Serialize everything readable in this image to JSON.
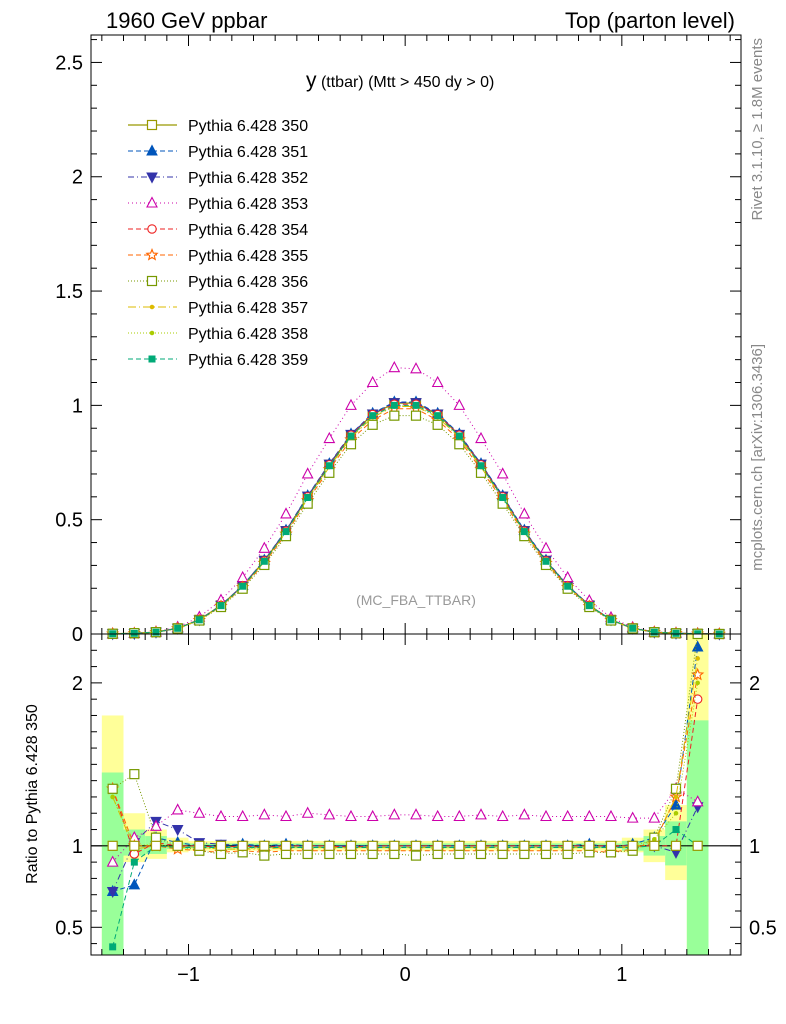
{
  "header": {
    "left_label": "1960 GeV ppbar",
    "right_label": "Top (parton level)"
  },
  "side_labels": {
    "rivet": "Rivet 3.1.10, ≥ 1.8M events",
    "mcplots": "mcplots.cern.ch [arXiv:1306.3436]"
  },
  "chart_data": [
    {
      "type": "line",
      "title": "y (ttbar) (Mtt > 450 dy > 0)",
      "title_main": "y",
      "title_rest": " (ttbar) (Mtt > 450 dy > 0)",
      "watermark": "(MC_FBA_TTBAR)",
      "xlim": [
        -1.45,
        1.55
      ],
      "ylim": [
        0,
        2.62
      ],
      "yticks": [
        0,
        0.5,
        1,
        1.5,
        2,
        2.5
      ],
      "ytick_labels": [
        "0",
        "0.5",
        "1",
        "1.5",
        "2",
        "2.5"
      ],
      "grid": false,
      "legend_position": "top-left",
      "x": [
        -1.35,
        -1.25,
        -1.15,
        -1.05,
        -0.95,
        -0.85,
        -0.75,
        -0.65,
        -0.55,
        -0.45,
        -0.35,
        -0.25,
        -0.15,
        -0.05,
        0.05,
        0.15,
        0.25,
        0.35,
        0.45,
        0.55,
        0.65,
        0.75,
        0.85,
        0.95,
        1.05,
        1.15,
        1.25,
        1.35,
        1.45
      ],
      "series": [
        {
          "name": "Pythia 6.428 350",
          "color": "#999900",
          "dash": "",
          "marker": "square-open",
          "width": 1.3,
          "values": [
            0.001,
            0.003,
            0.008,
            0.025,
            0.062,
            0.125,
            0.21,
            0.32,
            0.45,
            0.6,
            0.74,
            0.87,
            0.96,
            1.01,
            1.01,
            0.96,
            0.87,
            0.74,
            0.6,
            0.45,
            0.32,
            0.21,
            0.125,
            0.062,
            0.025,
            0.008,
            0.003,
            0.001,
            0.0
          ]
        },
        {
          "name": "Pythia 6.428 351",
          "color": "#0055bb",
          "dash": "5,3",
          "marker": "triangle-up",
          "width": 1.0,
          "values": [
            0.001,
            0.002,
            0.008,
            0.025,
            0.062,
            0.126,
            0.212,
            0.323,
            0.454,
            0.605,
            0.745,
            0.875,
            0.965,
            1.015,
            1.015,
            0.965,
            0.875,
            0.745,
            0.605,
            0.454,
            0.323,
            0.212,
            0.126,
            0.062,
            0.025,
            0.008,
            0.004,
            0.002,
            0.001
          ]
        },
        {
          "name": "Pythia 6.428 352",
          "color": "#3333aa",
          "dash": "6,3,1,3",
          "marker": "triangle-down",
          "width": 1.0,
          "values": [
            0.001,
            0.002,
            0.008,
            0.025,
            0.062,
            0.126,
            0.212,
            0.322,
            0.452,
            0.603,
            0.743,
            0.873,
            0.962,
            1.012,
            1.012,
            0.962,
            0.873,
            0.743,
            0.603,
            0.452,
            0.322,
            0.212,
            0.126,
            0.062,
            0.025,
            0.008,
            0.003,
            0.001,
            0.0
          ]
        },
        {
          "name": "Pythia 6.428 353",
          "color": "#cc00aa",
          "dash": "1,3",
          "marker": "triangle-open",
          "width": 1.0,
          "values": [
            0.001,
            0.003,
            0.009,
            0.03,
            0.074,
            0.148,
            0.247,
            0.375,
            0.525,
            0.7,
            0.855,
            1.0,
            1.1,
            1.165,
            1.16,
            1.1,
            1.0,
            0.855,
            0.7,
            0.525,
            0.375,
            0.247,
            0.146,
            0.072,
            0.029,
            0.009,
            0.004,
            0.001,
            0.0
          ]
        },
        {
          "name": "Pythia 6.428 354",
          "color": "#ee2222",
          "dash": "5,3",
          "marker": "circle-open",
          "width": 1.0,
          "values": [
            0.001,
            0.003,
            0.008,
            0.026,
            0.063,
            0.125,
            0.21,
            0.32,
            0.45,
            0.6,
            0.74,
            0.87,
            0.96,
            1.005,
            1.005,
            0.96,
            0.87,
            0.74,
            0.6,
            0.45,
            0.32,
            0.21,
            0.125,
            0.062,
            0.025,
            0.008,
            0.003,
            0.001,
            0.0
          ]
        },
        {
          "name": "Pythia 6.428 355",
          "color": "#ff6600",
          "dash": "5,3",
          "marker": "star-open",
          "width": 1.0,
          "values": [
            0.001,
            0.003,
            0.008,
            0.024,
            0.06,
            0.121,
            0.204,
            0.31,
            0.438,
            0.585,
            0.72,
            0.85,
            0.935,
            0.985,
            0.985,
            0.935,
            0.85,
            0.72,
            0.585,
            0.438,
            0.31,
            0.204,
            0.121,
            0.06,
            0.024,
            0.008,
            0.003,
            0.001,
            0.0
          ]
        },
        {
          "name": "Pythia 6.428 356",
          "color": "#779900",
          "dash": "1,2",
          "marker": "square-open",
          "width": 1.0,
          "values": [
            0.001,
            0.004,
            0.008,
            0.024,
            0.059,
            0.118,
            0.198,
            0.302,
            0.428,
            0.57,
            0.705,
            0.83,
            0.915,
            0.955,
            0.955,
            0.915,
            0.83,
            0.705,
            0.57,
            0.428,
            0.302,
            0.198,
            0.118,
            0.059,
            0.024,
            0.008,
            0.003,
            0.001,
            0.0
          ]
        },
        {
          "name": "Pythia 6.428 357",
          "color": "#ddbb00",
          "dash": "8,3,1,3",
          "marker": "dot",
          "width": 1.0,
          "values": [
            0.001,
            0.003,
            0.008,
            0.025,
            0.061,
            0.123,
            0.207,
            0.315,
            0.444,
            0.592,
            0.73,
            0.86,
            0.948,
            0.995,
            0.995,
            0.948,
            0.86,
            0.73,
            0.592,
            0.444,
            0.315,
            0.207,
            0.123,
            0.061,
            0.025,
            0.008,
            0.003,
            0.001,
            0.0
          ]
        },
        {
          "name": "Pythia 6.428 358",
          "color": "#aacc00",
          "dash": "1,2",
          "marker": "dot",
          "width": 1.0,
          "values": [
            0.001,
            0.003,
            0.008,
            0.025,
            0.061,
            0.123,
            0.207,
            0.316,
            0.445,
            0.593,
            0.732,
            0.862,
            0.95,
            0.997,
            0.997,
            0.95,
            0.862,
            0.732,
            0.593,
            0.445,
            0.316,
            0.207,
            0.123,
            0.061,
            0.025,
            0.008,
            0.003,
            0.001,
            0.0
          ]
        },
        {
          "name": "Pythia 6.428 359",
          "color": "#00aa77",
          "dash": "5,3",
          "marker": "square-filled",
          "width": 1.0,
          "values": [
            0.001,
            0.003,
            0.008,
            0.025,
            0.062,
            0.124,
            0.209,
            0.318,
            0.448,
            0.597,
            0.736,
            0.866,
            0.955,
            1.0,
            1.0,
            0.955,
            0.866,
            0.736,
            0.597,
            0.448,
            0.318,
            0.209,
            0.124,
            0.062,
            0.025,
            0.008,
            0.003,
            0.001,
            0.0
          ]
        }
      ]
    },
    {
      "type": "line",
      "ylabel": "Ratio to Pythia 6.428 350",
      "xlim": [
        -1.45,
        1.55
      ],
      "ylim": [
        0.33,
        2.3
      ],
      "xticks": [
        -1,
        0,
        1
      ],
      "xtick_labels": [
        "−1",
        "0",
        "1"
      ],
      "yticks": [
        0.5,
        1,
        2
      ],
      "ytick_labels": [
        "0.5",
        "1",
        "2"
      ],
      "reference_line": 1,
      "band_x_edges": [
        -1.4,
        -1.3,
        -1.2,
        -1.1,
        -1.0,
        1.0,
        1.1,
        1.2,
        1.3,
        1.4
      ],
      "band_outer": [
        [
          0.33,
          1.8
        ],
        [
          0.9,
          1.2
        ],
        [
          0.92,
          1.1
        ],
        [
          0.96,
          1.05
        ],
        [
          0.97,
          1.03
        ],
        [
          0.96,
          1.05
        ],
        [
          0.9,
          1.1
        ],
        [
          0.79,
          1.25
        ],
        [
          0.33,
          2.3
        ]
      ],
      "band_inner": [
        [
          0.33,
          1.45
        ],
        [
          0.94,
          1.1
        ],
        [
          0.95,
          1.06
        ],
        [
          0.98,
          1.02
        ],
        [
          0.985,
          1.015
        ],
        [
          0.97,
          1.03
        ],
        [
          0.94,
          1.06
        ],
        [
          0.88,
          1.15
        ],
        [
          0.33,
          1.77
        ]
      ],
      "x": [
        -1.35,
        -1.25,
        -1.15,
        -1.05,
        -0.95,
        -0.85,
        -0.75,
        -0.65,
        -0.55,
        -0.45,
        -0.35,
        -0.25,
        -0.15,
        -0.05,
        0.05,
        0.15,
        0.25,
        0.35,
        0.45,
        0.55,
        0.65,
        0.75,
        0.85,
        0.95,
        1.05,
        1.15,
        1.25,
        1.35
      ],
      "series": [
        {
          "name": "Pythia 6.428 350",
          "values": [
            1,
            1,
            1,
            1,
            1,
            1,
            1,
            1,
            1,
            1,
            1,
            1,
            1,
            1,
            1,
            1,
            1,
            1,
            1,
            1,
            1,
            1,
            1,
            1,
            1,
            1,
            1,
            1
          ]
        },
        {
          "name": "Pythia 6.428 351",
          "values": [
            0.72,
            0.76,
            1.05,
            1.02,
            1.0,
            1.0,
            1.01,
            1.0,
            1.01,
            1.0,
            1.0,
            1.0,
            1.0,
            1.0,
            1.0,
            1.0,
            1.0,
            1.0,
            1.0,
            1.0,
            1.0,
            1.0,
            1.01,
            0.99,
            1.01,
            1.05,
            1.25,
            2.22
          ]
        },
        {
          "name": "Pythia 6.428 352",
          "values": [
            0.72,
            1.02,
            1.15,
            1.1,
            1.02,
            1.01,
            1.0,
            1.0,
            1.0,
            1.0,
            1.0,
            1.0,
            1.0,
            1.0,
            1.0,
            1.0,
            1.0,
            1.0,
            1.0,
            1.0,
            1.0,
            1.0,
            1.0,
            1.0,
            1.0,
            1.0,
            0.96,
            1.24
          ]
        },
        {
          "name": "Pythia 6.428 353",
          "values": [
            0.9,
            1.05,
            1.12,
            1.22,
            1.2,
            1.18,
            1.18,
            1.19,
            1.18,
            1.2,
            1.19,
            1.18,
            1.18,
            1.19,
            1.19,
            1.18,
            1.18,
            1.19,
            1.18,
            1.19,
            1.18,
            1.18,
            1.18,
            1.18,
            1.17,
            1.17,
            1.35,
            1.27
          ]
        },
        {
          "name": "Pythia 6.428 354",
          "values": [
            1.35,
            0.95,
            1.02,
            1.0,
            1.0,
            0.99,
            1.0,
            0.99,
            1.0,
            1.0,
            1.0,
            0.99,
            1.0,
            1.0,
            1.0,
            1.0,
            1.0,
            1.0,
            1.0,
            1.0,
            1.0,
            1.0,
            1.0,
            1.0,
            1.0,
            1.0,
            1.0,
            1.9
          ]
        },
        {
          "name": "Pythia 6.428 355",
          "values": [
            1.35,
            1.0,
            1.0,
            0.98,
            0.97,
            0.96,
            0.97,
            0.96,
            0.97,
            0.97,
            0.97,
            0.97,
            0.97,
            0.97,
            0.97,
            0.97,
            0.97,
            0.97,
            0.97,
            0.97,
            0.97,
            0.97,
            0.97,
            0.96,
            0.98,
            1.02,
            1.3,
            2.05
          ]
        },
        {
          "name": "Pythia 6.428 356",
          "values": [
            1.35,
            1.44,
            1.05,
            1.0,
            0.97,
            0.95,
            0.96,
            0.94,
            0.95,
            0.95,
            0.95,
            0.95,
            0.95,
            0.95,
            0.94,
            0.95,
            0.95,
            0.95,
            0.95,
            0.95,
            0.95,
            0.95,
            0.96,
            0.96,
            0.97,
            1.05,
            1.35,
            2.3
          ]
        },
        {
          "name": "Pythia 6.428 357",
          "values": [
            1.3,
            0.98,
            1.0,
            0.99,
            0.99,
            0.98,
            0.98,
            0.98,
            0.99,
            0.99,
            0.99,
            0.99,
            0.99,
            0.99,
            0.99,
            0.99,
            0.99,
            0.99,
            0.99,
            0.99,
            0.99,
            0.99,
            0.99,
            0.99,
            0.99,
            1.03,
            1.3,
            2.15
          ]
        },
        {
          "name": "Pythia 6.428 358",
          "values": [
            1.3,
            1.0,
            1.01,
            0.99,
            0.99,
            0.98,
            0.98,
            0.99,
            0.99,
            0.99,
            0.99,
            0.99,
            0.99,
            0.99,
            0.99,
            0.99,
            0.99,
            0.99,
            0.99,
            0.99,
            0.99,
            0.99,
            0.99,
            0.99,
            1.0,
            1.04,
            1.2,
            2.0
          ]
        },
        {
          "name": "Pythia 6.428 359",
          "values": [
            0.38,
            0.9,
            1.0,
            0.99,
            0.99,
            0.99,
            0.99,
            0.99,
            0.99,
            0.99,
            0.99,
            0.99,
            0.99,
            0.99,
            0.99,
            0.99,
            0.99,
            0.99,
            0.99,
            0.99,
            0.99,
            0.99,
            0.99,
            0.99,
            0.99,
            1.0,
            1.1,
            1.0
          ]
        }
      ]
    }
  ]
}
